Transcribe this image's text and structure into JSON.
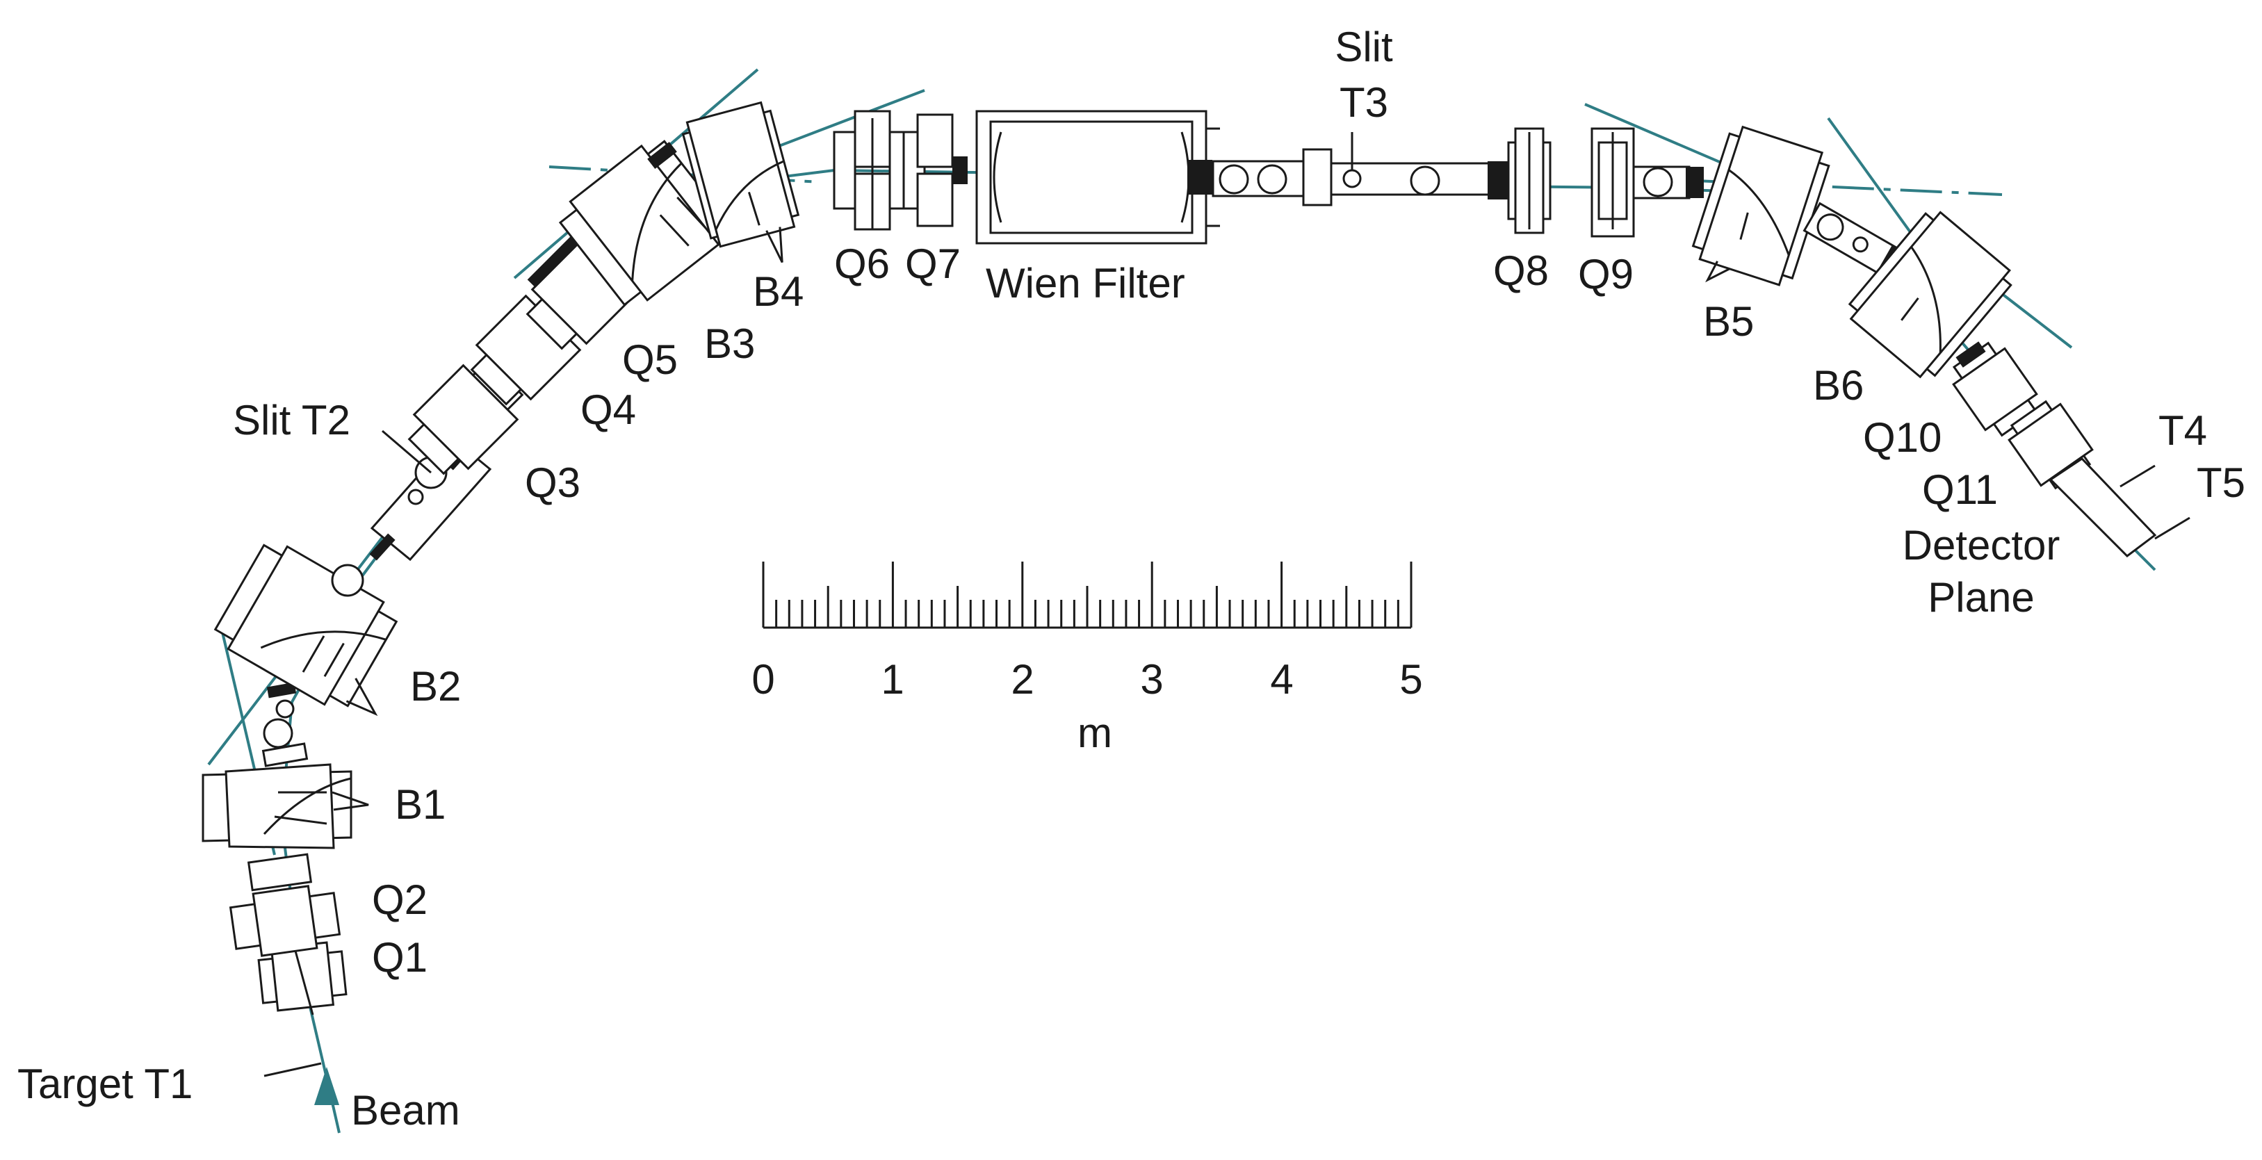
{
  "beam_color": "#2f7d85",
  "line_color": "#1a1a1a",
  "labels": {
    "target": "Target  T1",
    "beam": "Beam",
    "q1": "Q1",
    "q2": "Q2",
    "b1": "B1",
    "b2": "B2",
    "slit_t2": "Slit T2",
    "q3": "Q3",
    "q4": "Q4",
    "q5": "Q5",
    "b3": "B3",
    "b4": "B4",
    "q6": "Q6",
    "q7": "Q7",
    "wien": "Wien Filter",
    "slit3_line1": "Slit",
    "slit3_line2": "T3",
    "q8": "Q8",
    "q9": "Q9",
    "b5": "B5",
    "b6": "B6",
    "q10": "Q10",
    "q11": "Q11",
    "t4": "T4",
    "t5": "T5",
    "detector_line1": "Detector",
    "detector_line2": "Plane"
  },
  "scale_bar": {
    "ticks": [
      "0",
      "1",
      "2",
      "3",
      "4",
      "5"
    ],
    "unit": "m"
  }
}
